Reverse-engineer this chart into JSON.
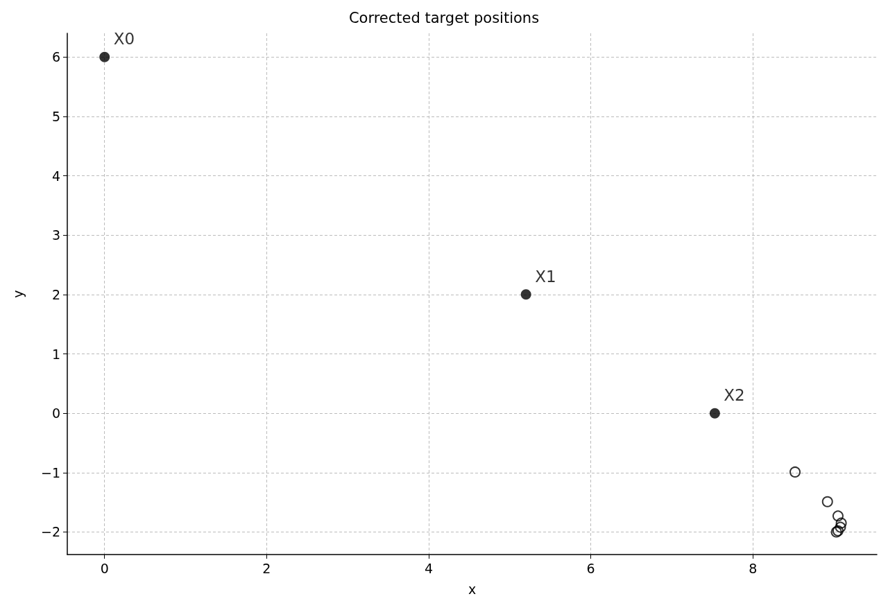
{
  "chart_data": {
    "type": "scatter",
    "title": "Corrected target positions",
    "xlabel": "x",
    "ylabel": "y",
    "series": [
      {
        "color": "#000000",
        "x": [
          0,
          5.2,
          7.53
        ],
        "values": [
          6,
          2,
          0
        ]
      },
      {
        "color": "#000000",
        "x": [
          8.52,
          8.92,
          9.05,
          9.09,
          9.08,
          9.05,
          9.03
        ],
        "values": [
          -0.99,
          -1.49,
          -1.73,
          -1.85,
          -1.92,
          -1.98,
          -2.0
        ]
      }
    ],
    "annotations": [
      {
        "text": "X0",
        "x": 0,
        "y": 6
      },
      {
        "text": "X1",
        "x": 5.2,
        "y": 2
      },
      {
        "text": "X2",
        "x": 7.53,
        "y": 0
      }
    ],
    "xlim": [
      -0.46,
      9.53
    ],
    "xticks": [
      0,
      2,
      4,
      6,
      8
    ],
    "ylim": [
      -2.38,
      6.4
    ],
    "yticks": [
      {
        "value": -2,
        "label": "−2"
      },
      {
        "value": -1,
        "label": "−1"
      },
      0,
      1,
      2,
      3,
      4,
      5,
      6
    ],
    "grid": true,
    "marker": "circle"
  }
}
